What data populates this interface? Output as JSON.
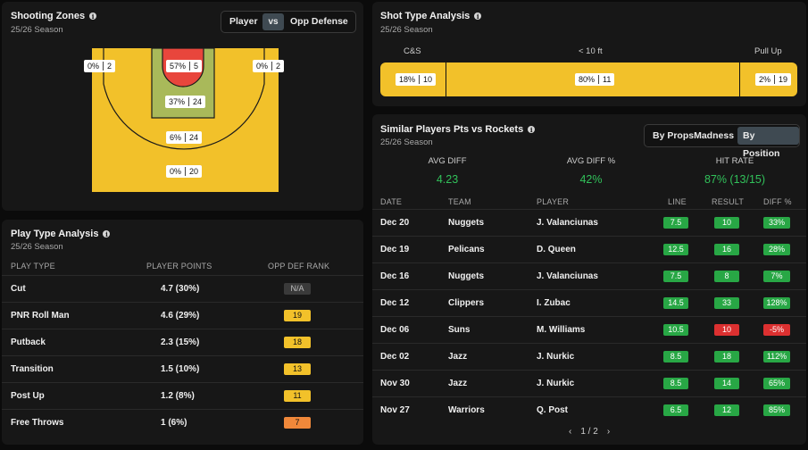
{
  "shooting_zones": {
    "title": "Shooting Zones",
    "subtitle": "25/26 Season",
    "toggle": {
      "player": "Player",
      "vs": "vs",
      "opp": "Opp Defense"
    },
    "zones": {
      "left_corner": {
        "pct": "0%",
        "att": "2"
      },
      "restricted": {
        "pct": "57%",
        "att": "5"
      },
      "right_corner": {
        "pct": "0%",
        "att": "2"
      },
      "paint": {
        "pct": "37%",
        "att": "24"
      },
      "midrange": {
        "pct": "6%",
        "att": "24"
      },
      "above_break": {
        "pct": "0%",
        "att": "20"
      }
    },
    "colors": {
      "cold": "#f2c12a",
      "warm": "#a9b95a",
      "hot": "#e8463c"
    }
  },
  "shot_type": {
    "title": "Shot Type Analysis",
    "subtitle": "25/26 Season",
    "segments": [
      {
        "label": "C&S",
        "pct": "18%",
        "att": "10"
      },
      {
        "label": "< 10 ft",
        "pct": "80%",
        "att": "11"
      },
      {
        "label": "Pull Up",
        "pct": "2%",
        "att": "19"
      }
    ]
  },
  "play_type": {
    "title": "Play Type Analysis",
    "subtitle": "25/26 Season",
    "headers": {
      "type": "PLAY TYPE",
      "points": "PLAYER POINTS",
      "rank": "OPP DEF RANK"
    },
    "rows": [
      {
        "type": "Cut",
        "points": "4.7 (30%)",
        "rank": "N/A",
        "color": "#3a3a3a"
      },
      {
        "type": "PNR Roll Man",
        "points": "4.6 (29%)",
        "rank": "19",
        "color": "#f2c12a"
      },
      {
        "type": "Putback",
        "points": "2.3 (15%)",
        "rank": "18",
        "color": "#f2c12a"
      },
      {
        "type": "Transition",
        "points": "1.5 (10%)",
        "rank": "13",
        "color": "#f2c12a"
      },
      {
        "type": "Post Up",
        "points": "1.2 (8%)",
        "rank": "11",
        "color": "#f2c12a"
      },
      {
        "type": "Free Throws",
        "points": "1 (6%)",
        "rank": "7",
        "color": "#f0883a"
      }
    ]
  },
  "similar": {
    "title": "Similar Players Pts vs Rockets",
    "subtitle": "25/26 Season",
    "tabs": {
      "a": "By PropsMadness",
      "b": "By Position"
    },
    "stats": [
      {
        "label": "AVG DIFF",
        "value": "4.23"
      },
      {
        "label": "AVG DIFF %",
        "value": "42%"
      },
      {
        "label": "HIT RATE",
        "value": "87% (13/15)"
      }
    ],
    "headers": {
      "date": "DATE",
      "team": "TEAM",
      "player": "PLAYER",
      "line": "LINE",
      "result": "RESULT",
      "diff": "DIFF %"
    },
    "rows": [
      {
        "date": "Dec 20",
        "team": "Nuggets",
        "player": "J. Valanciunas",
        "line": "7.5",
        "result": "10",
        "diff": "33%",
        "hit": true
      },
      {
        "date": "Dec 19",
        "team": "Pelicans",
        "player": "D. Queen",
        "line": "12.5",
        "result": "16",
        "diff": "28%",
        "hit": true
      },
      {
        "date": "Dec 16",
        "team": "Nuggets",
        "player": "J. Valanciunas",
        "line": "7.5",
        "result": "8",
        "diff": "7%",
        "hit": true
      },
      {
        "date": "Dec 12",
        "team": "Clippers",
        "player": "I. Zubac",
        "line": "14.5",
        "result": "33",
        "diff": "128%",
        "hit": true
      },
      {
        "date": "Dec 06",
        "team": "Suns",
        "player": "M. Williams",
        "line": "10.5",
        "result": "10",
        "diff": "-5%",
        "hit": false
      },
      {
        "date": "Dec 02",
        "team": "Jazz",
        "player": "J. Nurkic",
        "line": "8.5",
        "result": "18",
        "diff": "112%",
        "hit": true
      },
      {
        "date": "Nov 30",
        "team": "Jazz",
        "player": "J. Nurkic",
        "line": "8.5",
        "result": "14",
        "diff": "65%",
        "hit": true
      },
      {
        "date": "Nov 27",
        "team": "Warriors",
        "player": "Q. Post",
        "line": "6.5",
        "result": "12",
        "diff": "85%",
        "hit": true
      }
    ],
    "pager": {
      "prev": "‹",
      "page": "1 / 2",
      "next": "›"
    },
    "colors": {
      "hit": "#28a745",
      "miss": "#dc3030"
    }
  }
}
